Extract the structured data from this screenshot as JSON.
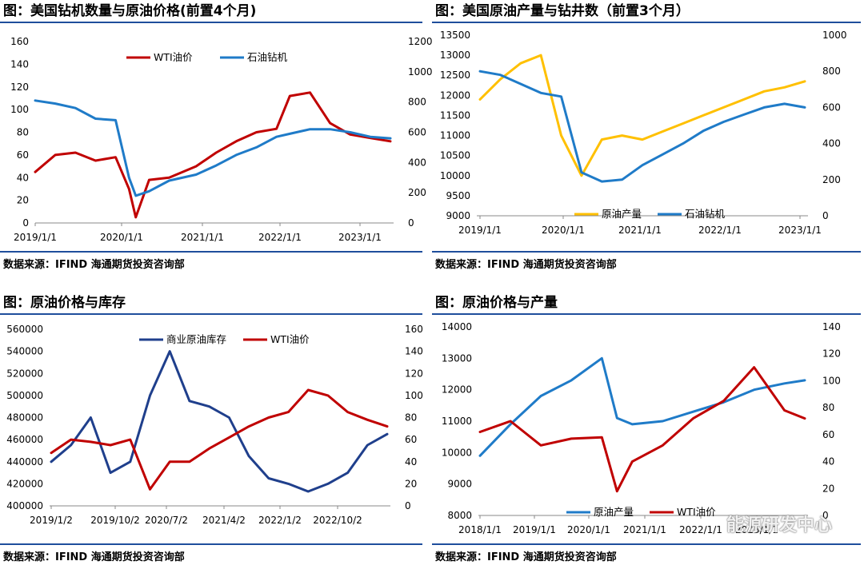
{
  "charts": [
    {
      "title": "图：美国钻机数量与原油价格(前置4个月)",
      "source": "数据来源：IFIND   海通期货投资咨询部",
      "legend": [
        "WTI油价",
        "石油钻机"
      ],
      "left_ticks": [
        "160",
        "140",
        "120",
        "100",
        "80",
        "60",
        "40",
        "20",
        "0"
      ],
      "right_ticks": [
        "1200",
        "1000",
        "800",
        "600",
        "400",
        "200",
        "0"
      ],
      "x_ticks": [
        "2019/1/1",
        "2020/1/1",
        "2021/1/1",
        "2022/1/1",
        "2023/1/1"
      ]
    },
    {
      "title": "图：美国原油产量与钻井数（前置3个月）",
      "source": "数据来源：IFIND   海通期货投资咨询部",
      "legend": [
        "原油产量",
        "石油钻机"
      ],
      "left_ticks": [
        "13500",
        "13000",
        "12500",
        "12000",
        "11500",
        "11000",
        "10500",
        "10000",
        "9500",
        "9000"
      ],
      "right_ticks": [
        "1000",
        "800",
        "600",
        "400",
        "200",
        "0"
      ],
      "x_ticks": [
        "2019/1/1",
        "2020/1/1",
        "2021/1/1",
        "2022/1/1",
        "2023/1/1"
      ]
    },
    {
      "title": "图：原油价格与库存",
      "source": "数据来源：IFIND   海通期货投资咨询部",
      "legend": [
        "商业原油库存",
        "WTI油价"
      ],
      "left_ticks": [
        "560000",
        "540000",
        "520000",
        "500000",
        "480000",
        "460000",
        "440000",
        "420000",
        "400000"
      ],
      "right_ticks": [
        "160",
        "140",
        "120",
        "100",
        "80",
        "60",
        "40",
        "20",
        "0"
      ],
      "x_ticks": [
        "2019/1/2",
        "2019/10/2",
        "2020/7/2",
        "2021/4/2",
        "2022/1/2",
        "2022/10/2"
      ]
    },
    {
      "title": "图：原油价格与产量",
      "source": "数据来源：IFIND   海通期货投资咨询部",
      "legend": [
        "原油产量",
        "WTI油价"
      ],
      "left_ticks": [
        "14000",
        "13000",
        "12000",
        "11000",
        "10000",
        "9000",
        "8000"
      ],
      "right_ticks": [
        "140",
        "120",
        "100",
        "80",
        "60",
        "40",
        "20",
        "0"
      ],
      "x_ticks": [
        "2018/1/1",
        "2019/1/1",
        "2020/1/1",
        "2021/1/1",
        "2022/1/1",
        "2023/1/1"
      ]
    }
  ],
  "watermark": "能源研发中心",
  "colors": {
    "red": "#c00000",
    "blue": "#1f7bc8",
    "yellow": "#ffc000",
    "navy": "#1f3f8c",
    "rule": "#1f4e9c"
  },
  "chart_data": [
    {
      "type": "line",
      "title": "图：美国钻机数量与原油价格(前置4个月)",
      "x": [
        "2019-01",
        "2019-04",
        "2019-07",
        "2019-10",
        "2020-01",
        "2020-03",
        "2020-04",
        "2020-06",
        "2020-09",
        "2021-01",
        "2021-04",
        "2021-07",
        "2021-10",
        "2022-01",
        "2022-03",
        "2022-06",
        "2022-09",
        "2022-12",
        "2023-03",
        "2023-06"
      ],
      "ylim_left": [
        0,
        160
      ],
      "ylim_right": [
        0,
        1200
      ],
      "series": [
        {
          "name": "WTI油价",
          "axis": "left",
          "values": [
            45,
            60,
            62,
            55,
            58,
            30,
            5,
            38,
            40,
            50,
            62,
            72,
            80,
            83,
            112,
            115,
            88,
            78,
            75,
            72
          ]
        },
        {
          "name": "石油钻机",
          "axis": "right",
          "values": [
            810,
            790,
            760,
            690,
            680,
            300,
            180,
            210,
            280,
            320,
            380,
            450,
            500,
            570,
            590,
            620,
            620,
            600,
            570,
            560
          ]
        }
      ]
    },
    {
      "type": "line",
      "title": "图：美国原油产量与钻井数（前置3个月）",
      "x": [
        "2019-01",
        "2019-04",
        "2019-07",
        "2019-10",
        "2020-01",
        "2020-04",
        "2020-07",
        "2020-10",
        "2021-01",
        "2021-04",
        "2021-07",
        "2021-10",
        "2022-01",
        "2022-04",
        "2022-07",
        "2022-10",
        "2023-01"
      ],
      "ylim_left": [
        9000,
        13500
      ],
      "ylim_right": [
        0,
        1000
      ],
      "series": [
        {
          "name": "原油产量",
          "axis": "left",
          "values": [
            11900,
            12400,
            12800,
            13000,
            11000,
            10000,
            10900,
            11000,
            10900,
            11100,
            11300,
            11500,
            11700,
            11900,
            12100,
            12200,
            12350
          ]
        },
        {
          "name": "石油钻机",
          "axis": "right",
          "values": [
            800,
            780,
            730,
            680,
            660,
            240,
            190,
            200,
            280,
            340,
            400,
            470,
            520,
            560,
            600,
            620,
            600
          ]
        }
      ]
    },
    {
      "type": "line",
      "title": "图：原油价格与库存",
      "x": [
        "2019-01",
        "2019-04",
        "2019-07",
        "2019-10",
        "2020-01",
        "2020-04",
        "2020-07",
        "2020-10",
        "2021-01",
        "2021-04",
        "2021-07",
        "2021-10",
        "2022-01",
        "2022-04",
        "2022-07",
        "2022-10",
        "2023-01",
        "2023-04"
      ],
      "ylim_left": [
        400000,
        560000
      ],
      "ylim_right": [
        0,
        160
      ],
      "series": [
        {
          "name": "商业原油库存",
          "axis": "left",
          "values": [
            440000,
            455000,
            480000,
            430000,
            440000,
            500000,
            540000,
            495000,
            490000,
            480000,
            445000,
            425000,
            420000,
            413000,
            420000,
            430000,
            455000,
            465000
          ]
        },
        {
          "name": "WTI油价",
          "axis": "right",
          "values": [
            48,
            60,
            58,
            55,
            60,
            15,
            40,
            40,
            52,
            62,
            72,
            80,
            85,
            105,
            100,
            85,
            78,
            72
          ]
        }
      ]
    },
    {
      "type": "line",
      "title": "图：原油价格与产量",
      "x": [
        "2018-01",
        "2018-07",
        "2019-01",
        "2019-07",
        "2020-01",
        "2020-04",
        "2020-07",
        "2021-01",
        "2021-07",
        "2022-01",
        "2022-07",
        "2023-01",
        "2023-05"
      ],
      "ylim_left": [
        8000,
        14000
      ],
      "ylim_right": [
        0,
        140
      ],
      "series": [
        {
          "name": "原油产量",
          "axis": "left",
          "values": [
            9900,
            10900,
            11800,
            12300,
            13000,
            11100,
            10900,
            11000,
            11300,
            11600,
            12000,
            12200,
            12300
          ]
        },
        {
          "name": "WTI油价",
          "axis": "right",
          "values": [
            62,
            70,
            52,
            57,
            58,
            18,
            40,
            52,
            72,
            85,
            110,
            78,
            72
          ]
        }
      ]
    }
  ]
}
